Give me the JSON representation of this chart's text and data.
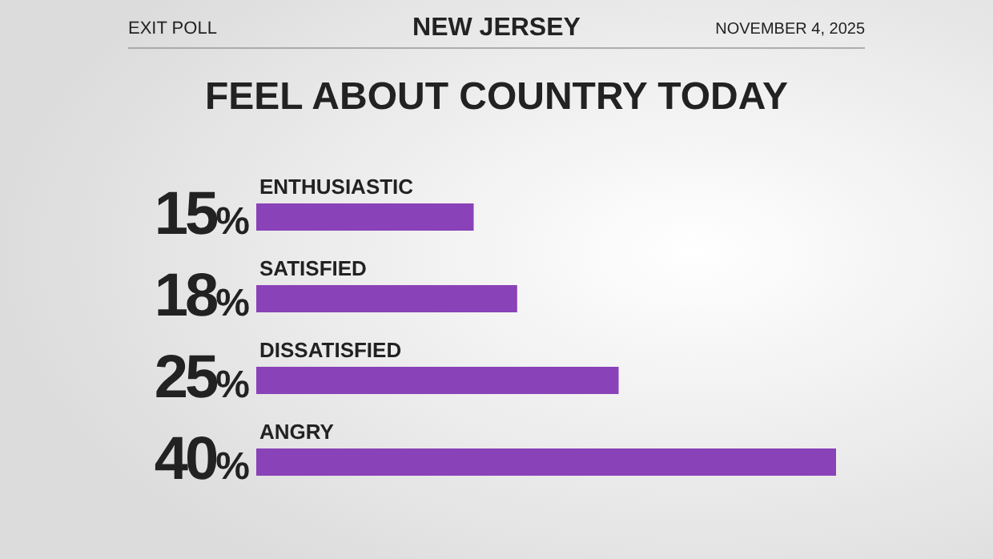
{
  "chart_data": {
    "type": "bar",
    "orientation": "horizontal",
    "title": "FEEL ABOUT COUNTRY TODAY",
    "subtitle": "NEW JERSEY",
    "annotations": [
      "EXIT POLL",
      "NOVEMBER 4, 2025"
    ],
    "categories": [
      "ENTHUSIASTIC",
      "SATISFIED",
      "DISSATISFIED",
      "ANGRY"
    ],
    "values": [
      15,
      18,
      25,
      40
    ],
    "value_labels": [
      "15%",
      "18%",
      "25%",
      "40%"
    ],
    "color": "#8a42b8"
  }
}
